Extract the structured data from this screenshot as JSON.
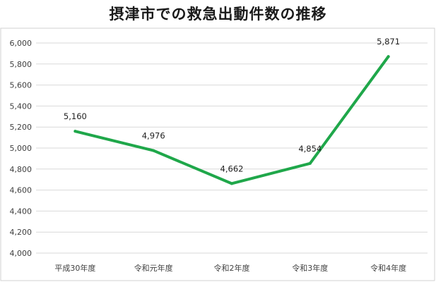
{
  "chart_data": {
    "type": "line",
    "title": "摂津市での救急出動件数の推移",
    "categories": [
      "平成30年度",
      "令和元年度",
      "令和2年度",
      "令和3年度",
      "令和4年度"
    ],
    "series": [
      {
        "values": [
          5160,
          4976,
          4662,
          4854,
          5871
        ],
        "color": "#1fa74a"
      }
    ],
    "data_labels": [
      "5,160",
      "4,976",
      "4,662",
      "4,854",
      "5,871"
    ],
    "y_ticks": [
      "4,000",
      "4,200",
      "4,400",
      "4,600",
      "4,800",
      "5,000",
      "5,200",
      "5,400",
      "5,600",
      "5,800",
      "6,000"
    ],
    "ylim": [
      4000,
      6000
    ],
    "y_step": 200,
    "grid": true,
    "gridline_color": "#d9d9d9",
    "frame_color": "#d0d0d0",
    "legend": "none"
  }
}
